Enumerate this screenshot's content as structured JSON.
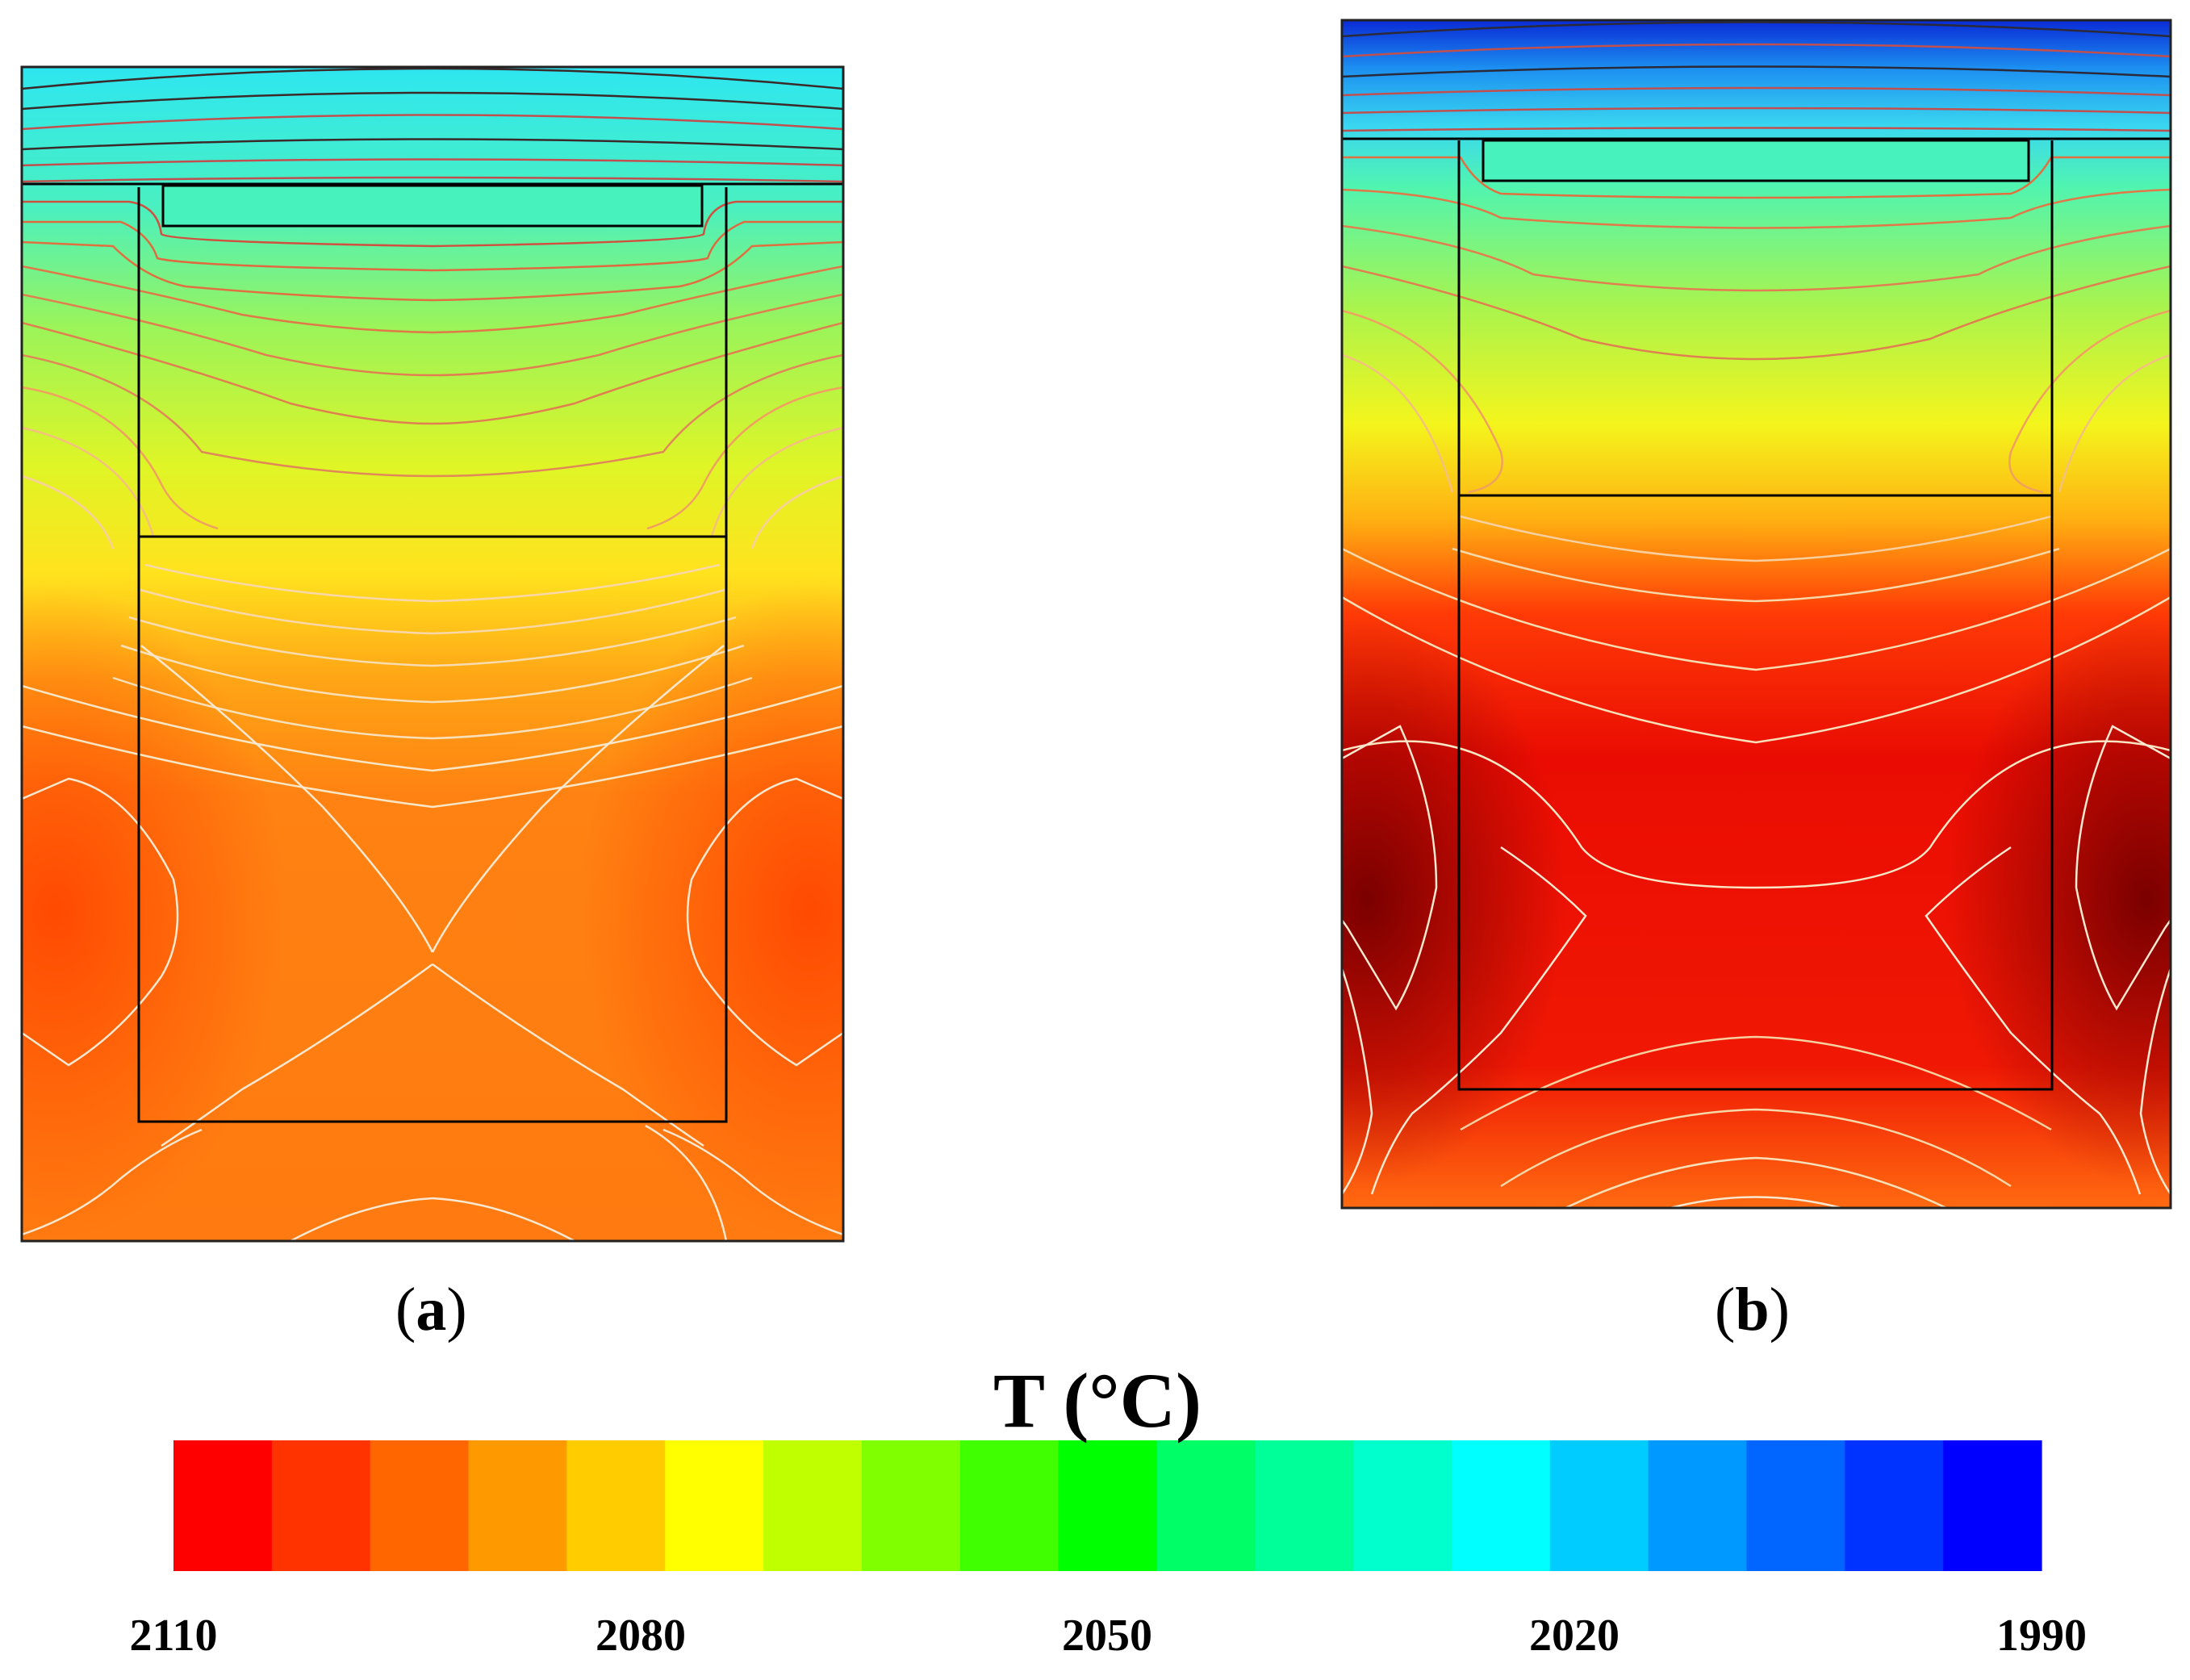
{
  "chart_data": [
    {
      "type": "heatmap",
      "panel_label": "a",
      "description_quantity": "T (°C)",
      "contour_lines": true,
      "regions": [
        "outer-domain",
        "inner-crucible",
        "top-slab",
        "interface-line"
      ]
    },
    {
      "type": "heatmap",
      "panel_label": "b",
      "description_quantity": "T (°C)",
      "contour_lines": true,
      "regions": [
        "outer-domain",
        "inner-crucible",
        "top-slab",
        "interface-line"
      ]
    }
  ],
  "colorbar": {
    "title": "T (°C)",
    "range": [
      2110,
      1990
    ],
    "tick_labels": [
      "2110",
      "2080",
      "2050",
      "2020",
      "1990"
    ],
    "tick_values": [
      2110,
      2080,
      2050,
      2020,
      1990
    ],
    "colors": [
      "#ff0000",
      "#ff3300",
      "#ff6600",
      "#ff9900",
      "#ffcc00",
      "#ffff00",
      "#c0ff00",
      "#80ff00",
      "#40ff00",
      "#00ff00",
      "#00ff66",
      "#00ff99",
      "#00ffcc",
      "#00ffff",
      "#00ccff",
      "#0099ff",
      "#0066ff",
      "#0033ff",
      "#0000ff"
    ]
  },
  "labels": {
    "a": "a",
    "b": "b"
  }
}
